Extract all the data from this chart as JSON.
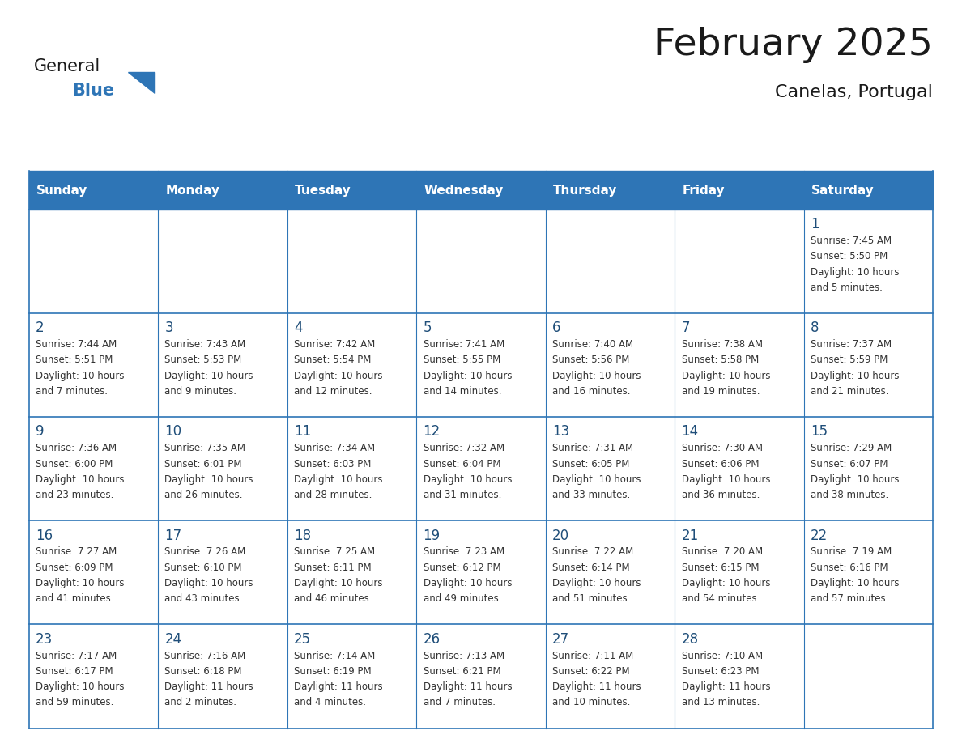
{
  "title": "February 2025",
  "subtitle": "Canelas, Portugal",
  "header_bg_color": "#2E75B6",
  "header_text_color": "#FFFFFF",
  "cell_bg_color": "#FFFFFF",
  "cell_text_color": "#333333",
  "day_number_color": "#1F4E79",
  "border_color": "#2E75B6",
  "days_of_week": [
    "Sunday",
    "Monday",
    "Tuesday",
    "Wednesday",
    "Thursday",
    "Friday",
    "Saturday"
  ],
  "calendar_data": [
    [
      null,
      null,
      null,
      null,
      null,
      null,
      {
        "day": 1,
        "sunrise": "7:45 AM",
        "sunset": "5:50 PM",
        "daylight_line1": "Daylight: 10 hours",
        "daylight_line2": "and 5 minutes."
      }
    ],
    [
      {
        "day": 2,
        "sunrise": "7:44 AM",
        "sunset": "5:51 PM",
        "daylight_line1": "Daylight: 10 hours",
        "daylight_line2": "and 7 minutes."
      },
      {
        "day": 3,
        "sunrise": "7:43 AM",
        "sunset": "5:53 PM",
        "daylight_line1": "Daylight: 10 hours",
        "daylight_line2": "and 9 minutes."
      },
      {
        "day": 4,
        "sunrise": "7:42 AM",
        "sunset": "5:54 PM",
        "daylight_line1": "Daylight: 10 hours",
        "daylight_line2": "and 12 minutes."
      },
      {
        "day": 5,
        "sunrise": "7:41 AM",
        "sunset": "5:55 PM",
        "daylight_line1": "Daylight: 10 hours",
        "daylight_line2": "and 14 minutes."
      },
      {
        "day": 6,
        "sunrise": "7:40 AM",
        "sunset": "5:56 PM",
        "daylight_line1": "Daylight: 10 hours",
        "daylight_line2": "and 16 minutes."
      },
      {
        "day": 7,
        "sunrise": "7:38 AM",
        "sunset": "5:58 PM",
        "daylight_line1": "Daylight: 10 hours",
        "daylight_line2": "and 19 minutes."
      },
      {
        "day": 8,
        "sunrise": "7:37 AM",
        "sunset": "5:59 PM",
        "daylight_line1": "Daylight: 10 hours",
        "daylight_line2": "and 21 minutes."
      }
    ],
    [
      {
        "day": 9,
        "sunrise": "7:36 AM",
        "sunset": "6:00 PM",
        "daylight_line1": "Daylight: 10 hours",
        "daylight_line2": "and 23 minutes."
      },
      {
        "day": 10,
        "sunrise": "7:35 AM",
        "sunset": "6:01 PM",
        "daylight_line1": "Daylight: 10 hours",
        "daylight_line2": "and 26 minutes."
      },
      {
        "day": 11,
        "sunrise": "7:34 AM",
        "sunset": "6:03 PM",
        "daylight_line1": "Daylight: 10 hours",
        "daylight_line2": "and 28 minutes."
      },
      {
        "day": 12,
        "sunrise": "7:32 AM",
        "sunset": "6:04 PM",
        "daylight_line1": "Daylight: 10 hours",
        "daylight_line2": "and 31 minutes."
      },
      {
        "day": 13,
        "sunrise": "7:31 AM",
        "sunset": "6:05 PM",
        "daylight_line1": "Daylight: 10 hours",
        "daylight_line2": "and 33 minutes."
      },
      {
        "day": 14,
        "sunrise": "7:30 AM",
        "sunset": "6:06 PM",
        "daylight_line1": "Daylight: 10 hours",
        "daylight_line2": "and 36 minutes."
      },
      {
        "day": 15,
        "sunrise": "7:29 AM",
        "sunset": "6:07 PM",
        "daylight_line1": "Daylight: 10 hours",
        "daylight_line2": "and 38 minutes."
      }
    ],
    [
      {
        "day": 16,
        "sunrise": "7:27 AM",
        "sunset": "6:09 PM",
        "daylight_line1": "Daylight: 10 hours",
        "daylight_line2": "and 41 minutes."
      },
      {
        "day": 17,
        "sunrise": "7:26 AM",
        "sunset": "6:10 PM",
        "daylight_line1": "Daylight: 10 hours",
        "daylight_line2": "and 43 minutes."
      },
      {
        "day": 18,
        "sunrise": "7:25 AM",
        "sunset": "6:11 PM",
        "daylight_line1": "Daylight: 10 hours",
        "daylight_line2": "and 46 minutes."
      },
      {
        "day": 19,
        "sunrise": "7:23 AM",
        "sunset": "6:12 PM",
        "daylight_line1": "Daylight: 10 hours",
        "daylight_line2": "and 49 minutes."
      },
      {
        "day": 20,
        "sunrise": "7:22 AM",
        "sunset": "6:14 PM",
        "daylight_line1": "Daylight: 10 hours",
        "daylight_line2": "and 51 minutes."
      },
      {
        "day": 21,
        "sunrise": "7:20 AM",
        "sunset": "6:15 PM",
        "daylight_line1": "Daylight: 10 hours",
        "daylight_line2": "and 54 minutes."
      },
      {
        "day": 22,
        "sunrise": "7:19 AM",
        "sunset": "6:16 PM",
        "daylight_line1": "Daylight: 10 hours",
        "daylight_line2": "and 57 minutes."
      }
    ],
    [
      {
        "day": 23,
        "sunrise": "7:17 AM",
        "sunset": "6:17 PM",
        "daylight_line1": "Daylight: 10 hours",
        "daylight_line2": "and 59 minutes."
      },
      {
        "day": 24,
        "sunrise": "7:16 AM",
        "sunset": "6:18 PM",
        "daylight_line1": "Daylight: 11 hours",
        "daylight_line2": "and 2 minutes."
      },
      {
        "day": 25,
        "sunrise": "7:14 AM",
        "sunset": "6:19 PM",
        "daylight_line1": "Daylight: 11 hours",
        "daylight_line2": "and 4 minutes."
      },
      {
        "day": 26,
        "sunrise": "7:13 AM",
        "sunset": "6:21 PM",
        "daylight_line1": "Daylight: 11 hours",
        "daylight_line2": "and 7 minutes."
      },
      {
        "day": 27,
        "sunrise": "7:11 AM",
        "sunset": "6:22 PM",
        "daylight_line1": "Daylight: 11 hours",
        "daylight_line2": "and 10 minutes."
      },
      {
        "day": 28,
        "sunrise": "7:10 AM",
        "sunset": "6:23 PM",
        "daylight_line1": "Daylight: 11 hours",
        "daylight_line2": "and 13 minutes."
      },
      null
    ]
  ],
  "num_rows": 5,
  "num_cols": 7,
  "logo_general_color": "#1a1a1a",
  "logo_blue_color": "#2E75B6",
  "logo_triangle_color": "#2E75B6",
  "title_color": "#1a1a1a",
  "title_fontsize": 34,
  "subtitle_fontsize": 16,
  "header_fontsize": 11,
  "day_num_fontsize": 12,
  "cell_text_fontsize": 8.5
}
